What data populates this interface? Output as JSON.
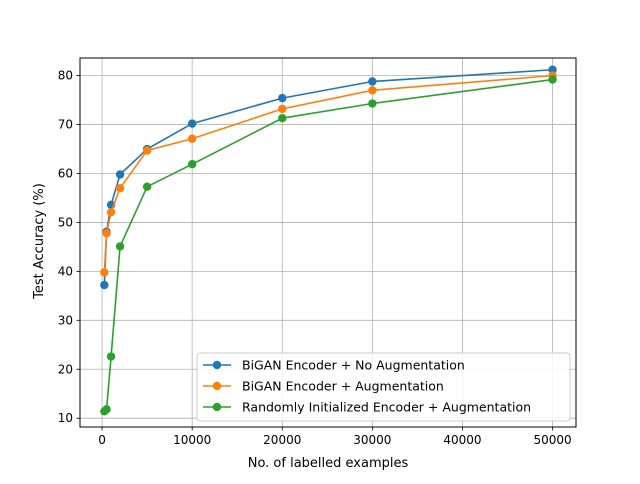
{
  "chart_data": {
    "type": "line",
    "title": "",
    "xlabel": "No. of labelled examples",
    "ylabel": "Test Accuracy (%)",
    "xlim": [
      -2450,
      52600
    ],
    "ylim": [
      8.2,
      83.6
    ],
    "xticks": [
      0,
      10000,
      20000,
      30000,
      40000,
      50000
    ],
    "yticks": [
      10,
      20,
      30,
      40,
      50,
      60,
      70,
      80
    ],
    "grid": true,
    "legend_position": "lower-right",
    "series": [
      {
        "name": "BiGAN Encoder + No Augmentation",
        "color": "#1f77b4",
        "x": [
          250,
          500,
          1000,
          2000,
          5000,
          10000,
          20000,
          30000,
          50000
        ],
        "y": [
          37.2,
          48.1,
          53.6,
          59.8,
          65.0,
          70.2,
          75.4,
          78.8,
          81.2
        ]
      },
      {
        "name": "BiGAN Encoder + Augmentation",
        "color": "#ff7f0e",
        "x": [
          250,
          500,
          1000,
          2000,
          5000,
          10000,
          20000,
          30000,
          50000
        ],
        "y": [
          39.8,
          47.8,
          52.1,
          57.0,
          64.7,
          67.1,
          73.2,
          77.0,
          80.0
        ]
      },
      {
        "name": "Randomly Initialized Encoder + Augmentation",
        "color": "#2ca02c",
        "x": [
          250,
          500,
          1000,
          2000,
          5000,
          10000,
          20000,
          30000,
          50000
        ],
        "y": [
          11.4,
          11.8,
          22.6,
          45.1,
          57.3,
          61.9,
          71.3,
          74.3,
          79.2
        ]
      }
    ]
  }
}
